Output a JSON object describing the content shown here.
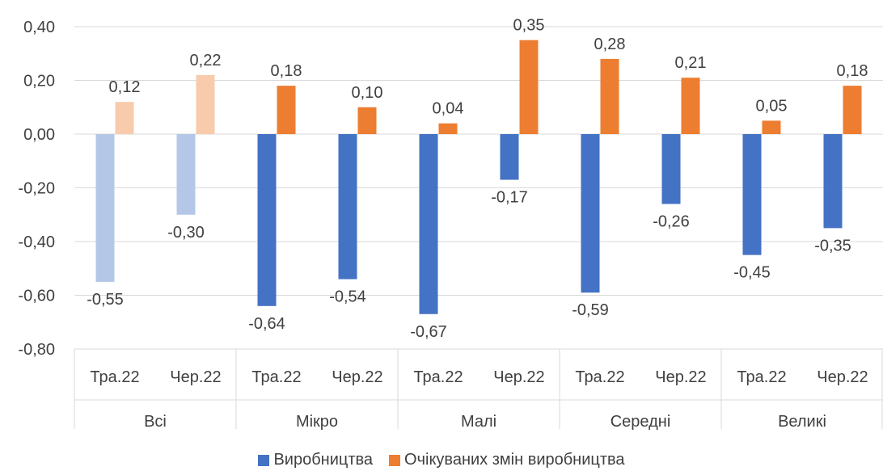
{
  "chart_data": {
    "type": "bar",
    "ylim": [
      -0.8,
      0.4
    ],
    "yticks": [
      "0,40",
      "0,20",
      "0,00",
      "-0,20",
      "-0,40",
      "-0,60",
      "-0,80"
    ],
    "ytick_values": [
      0.4,
      0.2,
      0.0,
      -0.2,
      -0.4,
      -0.6,
      -0.8
    ],
    "groups": [
      {
        "label": "Всі",
        "categories": [
          "Тра.22",
          "Чер.22"
        ],
        "faded": true
      },
      {
        "label": "Мікро",
        "categories": [
          "Тра.22",
          "Чер.22"
        ],
        "faded": false
      },
      {
        "label": "Малі",
        "categories": [
          "Тра.22",
          "Чер.22"
        ],
        "faded": false
      },
      {
        "label": "Середні",
        "categories": [
          "Тра.22",
          "Чер.22"
        ],
        "faded": false
      },
      {
        "label": "Великі",
        "categories": [
          "Тра.22",
          "Чер.22"
        ],
        "faded": false
      }
    ],
    "series": [
      {
        "name": "Виробництва",
        "color": "#4472C4",
        "faded_color": "#B4C7E7",
        "values": [
          -0.55,
          -0.3,
          -0.64,
          -0.54,
          -0.67,
          -0.17,
          -0.59,
          -0.26,
          -0.45,
          -0.35
        ],
        "labels": [
          "-0,55",
          "-0,30",
          "-0,64",
          "-0,54",
          "-0,67",
          "-0,17",
          "-0,59",
          "-0,26",
          "-0,45",
          "-0,35"
        ]
      },
      {
        "name": "Очікуваних змін виробництва",
        "color": "#ED7D31",
        "faded_color": "#F8CBAD",
        "values": [
          0.12,
          0.22,
          0.18,
          0.1,
          0.04,
          0.35,
          0.28,
          0.21,
          0.05,
          0.18
        ],
        "labels": [
          "0,12",
          "0,22",
          "0,18",
          "0,10",
          "0,04",
          "0,35",
          "0,28",
          "0,21",
          "0,05",
          "0,18"
        ]
      }
    ],
    "grid": true,
    "legend_position": "bottom"
  }
}
